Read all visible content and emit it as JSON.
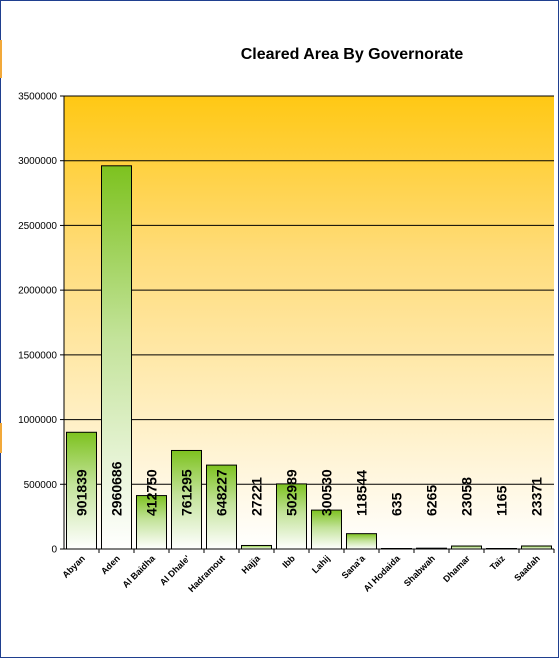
{
  "chart_data": {
    "type": "bar",
    "title": "Cleared Area By Governorate",
    "xlabel": "",
    "ylabel": "",
    "ylim": [
      0,
      3500000
    ],
    "yticks": [
      "0",
      "500000",
      "1000000",
      "1500000",
      "2000000",
      "2500000",
      "3000000",
      "3500000"
    ],
    "categories": [
      "Abyan",
      "Aden",
      "Al Baidha",
      "Al Dhale'",
      "Hadramout",
      "Hajja",
      "Ibb",
      "Lahij",
      "Sana'a",
      "Al Hodaida",
      "Shabwah",
      "Dhamar",
      "Taiz",
      "Saadah"
    ],
    "values": [
      901839,
      2960686,
      412750,
      761295,
      648227,
      27221,
      502989,
      300530,
      118544,
      635,
      6265,
      23058,
      1165,
      23371
    ],
    "data_labels": [
      "901839",
      "2960686",
      "412750",
      "761295",
      "648227",
      "27221",
      "502989",
      "300530",
      "118544",
      "635",
      "6265",
      "23058",
      "1165",
      "23371"
    ],
    "grid": true,
    "legend": "none",
    "colors": {
      "plot_top": "#ffc814",
      "plot_bottom": "#ffffff",
      "bar_top": "#7dc21f",
      "bar_bottom": "#ffffff",
      "bar_border": "#000000",
      "gridline": "#000000",
      "frame": "#1f3f8f"
    }
  }
}
